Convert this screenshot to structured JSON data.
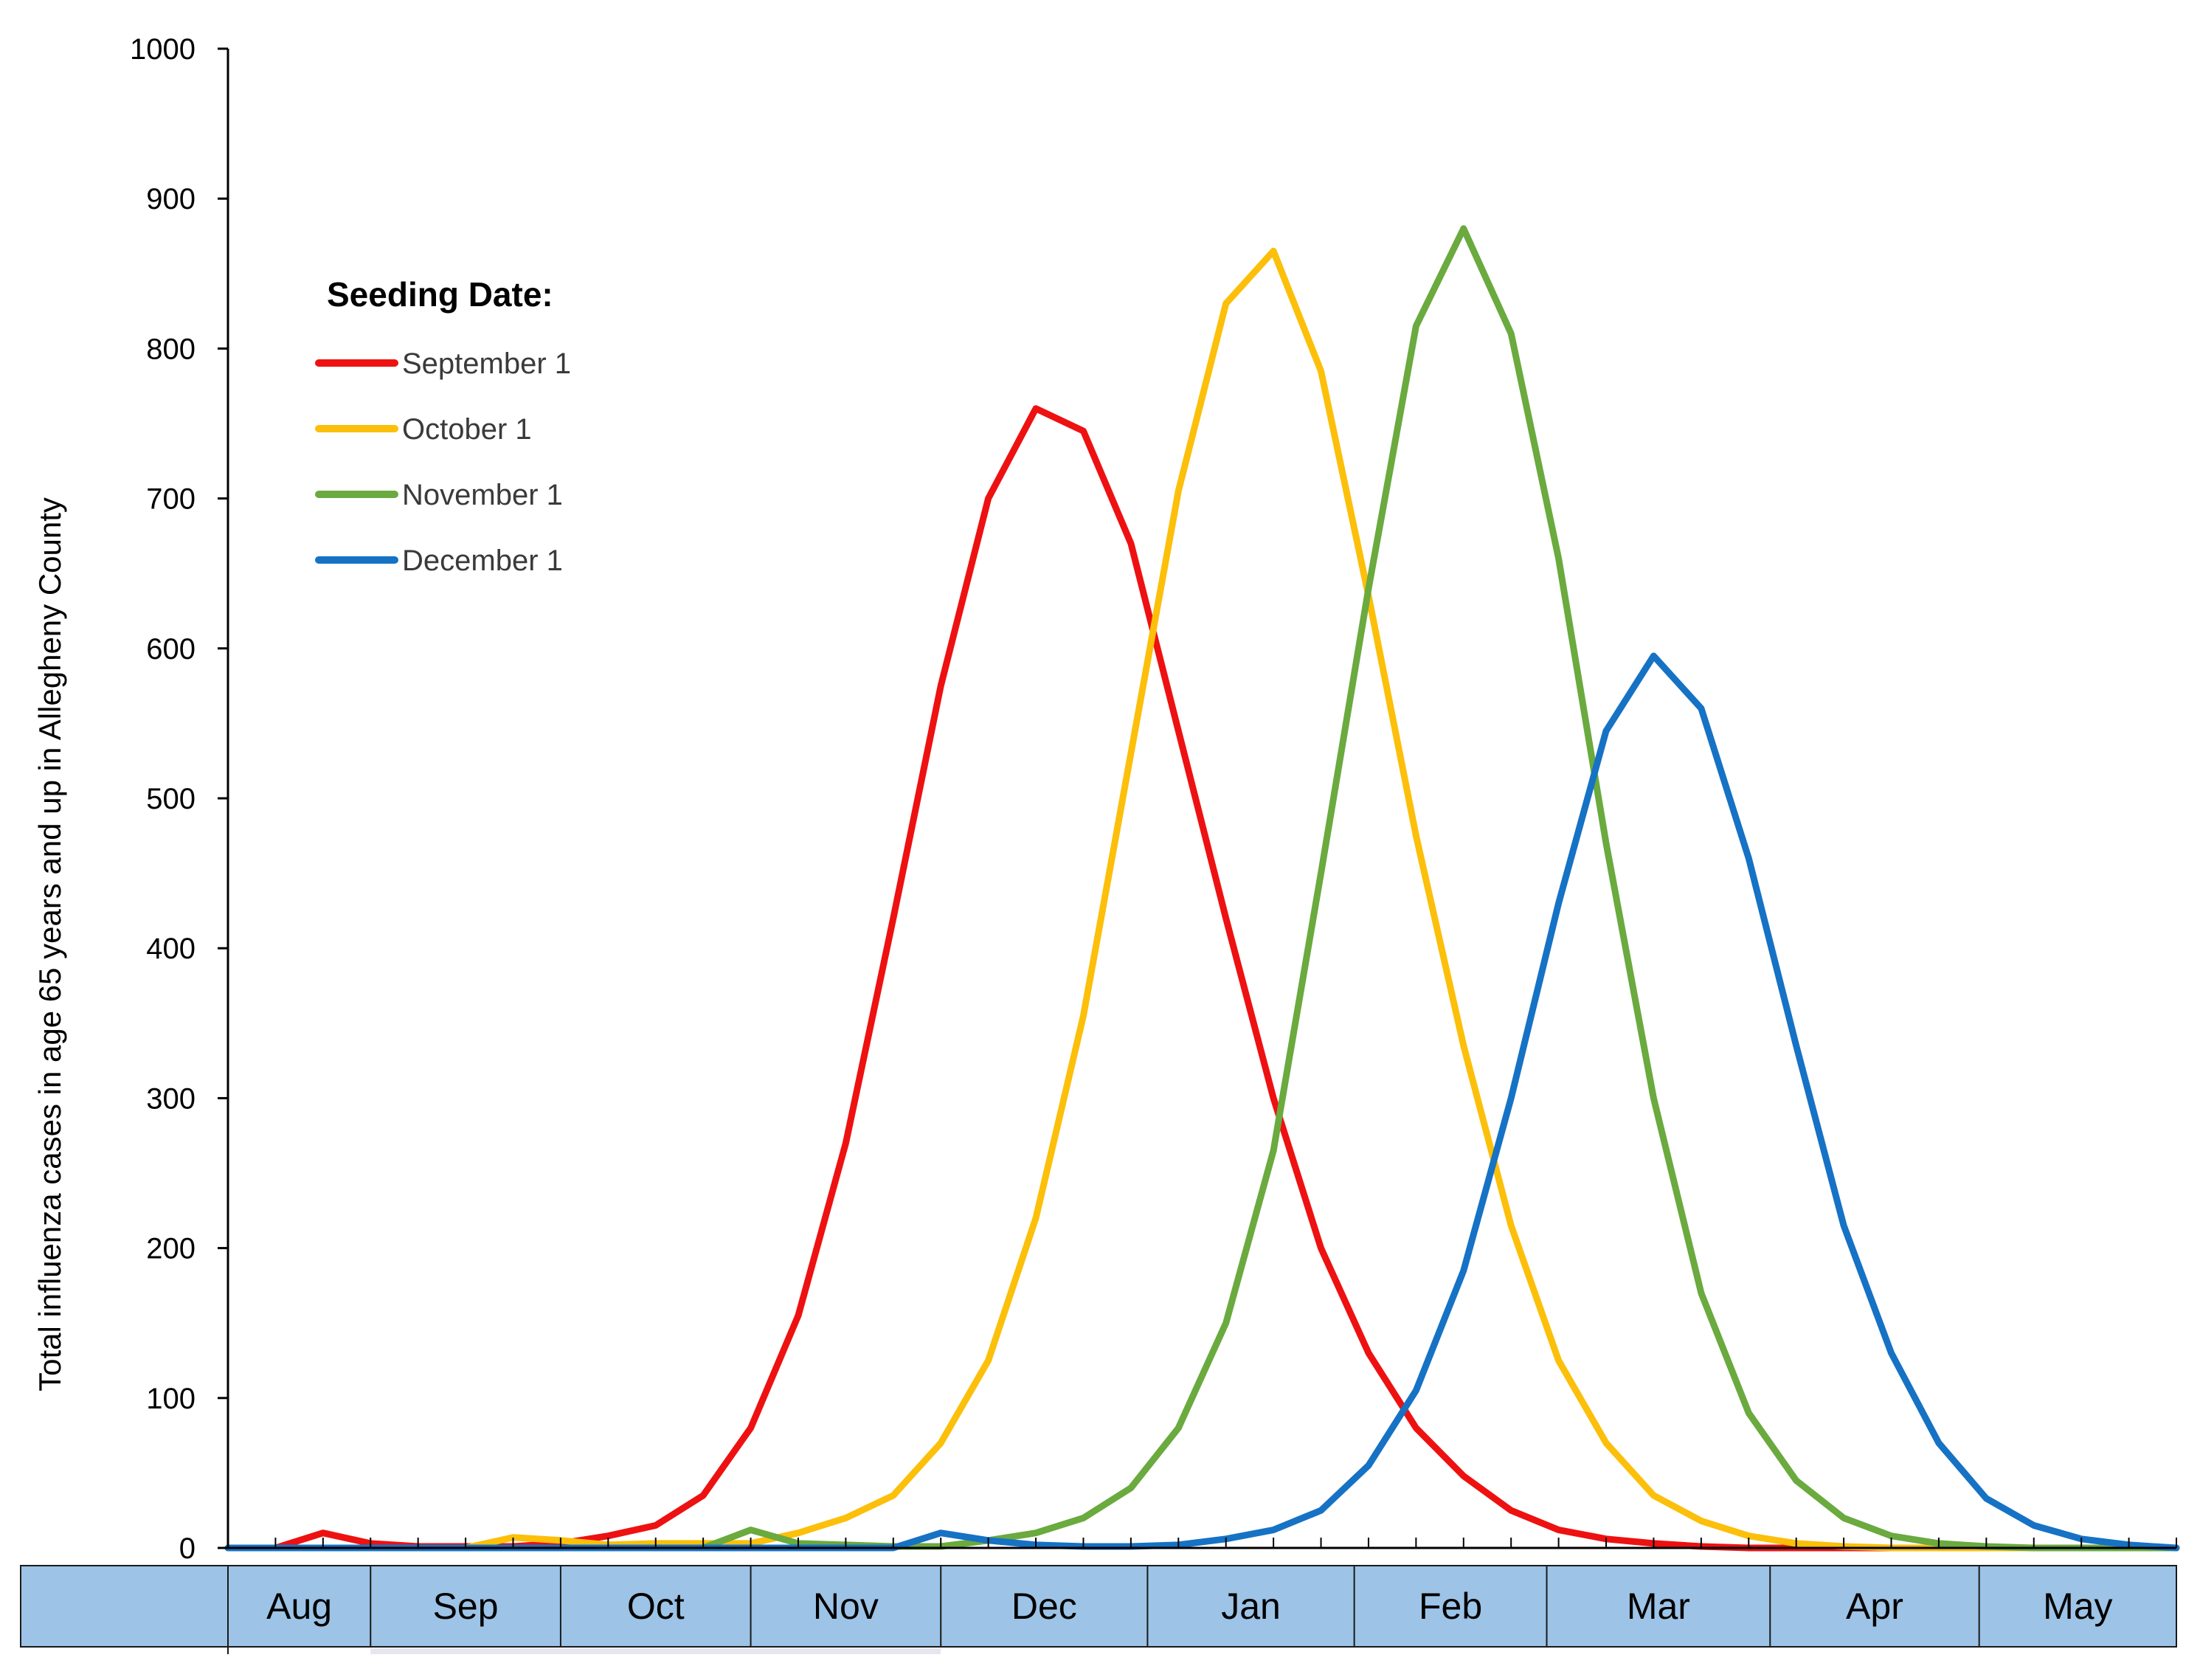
{
  "chart_data": {
    "type": "line",
    "title": "",
    "xlabel": "",
    "ylabel": "Total influenza cases in age 65 years and up in Allegheny County",
    "ylim": [
      0,
      1000
    ],
    "yticks": [
      0,
      100,
      200,
      300,
      400,
      500,
      600,
      700,
      800,
      900,
      1000
    ],
    "grid": false,
    "legend": {
      "title": "Seeding Date:",
      "position": "top-left"
    },
    "x": [
      0,
      1,
      2,
      3,
      4,
      5,
      6,
      7,
      8,
      9,
      10,
      11,
      12,
      13,
      14,
      15,
      16,
      17,
      18,
      19,
      20,
      21,
      22,
      23,
      24,
      25,
      26,
      27,
      28,
      29,
      30,
      31,
      32,
      33,
      34,
      35,
      36,
      37,
      38,
      39,
      40,
      41
    ],
    "x_unit": "week",
    "months": [
      {
        "label": "Aug",
        "start": 0,
        "end": 3
      },
      {
        "label": "Sep",
        "start": 3,
        "end": 7
      },
      {
        "label": "Oct",
        "start": 7,
        "end": 11
      },
      {
        "label": "Nov",
        "start": 11,
        "end": 15
      },
      {
        "label": "Dec",
        "start": 15,
        "end": 19.35
      },
      {
        "label": "Jan",
        "start": 19.35,
        "end": 23.7
      },
      {
        "label": "Feb",
        "start": 23.7,
        "end": 27.75
      },
      {
        "label": "Mar",
        "start": 27.75,
        "end": 32.45
      },
      {
        "label": "Apr",
        "start": 32.45,
        "end": 36.85
      },
      {
        "label": "May",
        "start": 36.85,
        "end": 41
      }
    ],
    "series": [
      {
        "name": "September 1",
        "color": "#ee1111",
        "values": [
          0,
          0,
          10,
          3,
          1,
          1,
          1,
          3,
          8,
          15,
          35,
          80,
          155,
          270,
          420,
          575,
          700,
          760,
          745,
          670,
          545,
          420,
          300,
          200,
          130,
          80,
          48,
          25,
          12,
          6,
          3,
          1,
          0,
          0,
          0,
          0,
          0,
          0,
          0,
          0,
          0,
          0
        ]
      },
      {
        "name": "October 1",
        "color": "#fcbf0a",
        "values": [
          0,
          0,
          0,
          0,
          0,
          0,
          7,
          5,
          2,
          3,
          3,
          3,
          10,
          20,
          35,
          70,
          125,
          220,
          355,
          530,
          705,
          830,
          865,
          785,
          635,
          475,
          335,
          215,
          125,
          70,
          35,
          18,
          8,
          3,
          1,
          0,
          0,
          0,
          0,
          0,
          0,
          0
        ]
      },
      {
        "name": "November 1",
        "color": "#6aaa3e",
        "values": [
          0,
          0,
          0,
          0,
          0,
          0,
          0,
          0,
          0,
          0,
          0,
          12,
          3,
          2,
          1,
          1,
          5,
          10,
          20,
          40,
          80,
          150,
          265,
          450,
          640,
          815,
          880,
          810,
          660,
          470,
          300,
          170,
          90,
          45,
          20,
          8,
          3,
          1,
          0,
          0,
          0,
          0
        ]
      },
      {
        "name": "December 1",
        "color": "#1672c4",
        "values": [
          0,
          0,
          0,
          0,
          0,
          0,
          0,
          0,
          0,
          0,
          0,
          0,
          0,
          0,
          0,
          10,
          5,
          2,
          1,
          1,
          2,
          6,
          12,
          25,
          55,
          105,
          185,
          300,
          430,
          545,
          595,
          560,
          460,
          335,
          215,
          130,
          70,
          33,
          15,
          6,
          2,
          0
        ]
      }
    ]
  }
}
